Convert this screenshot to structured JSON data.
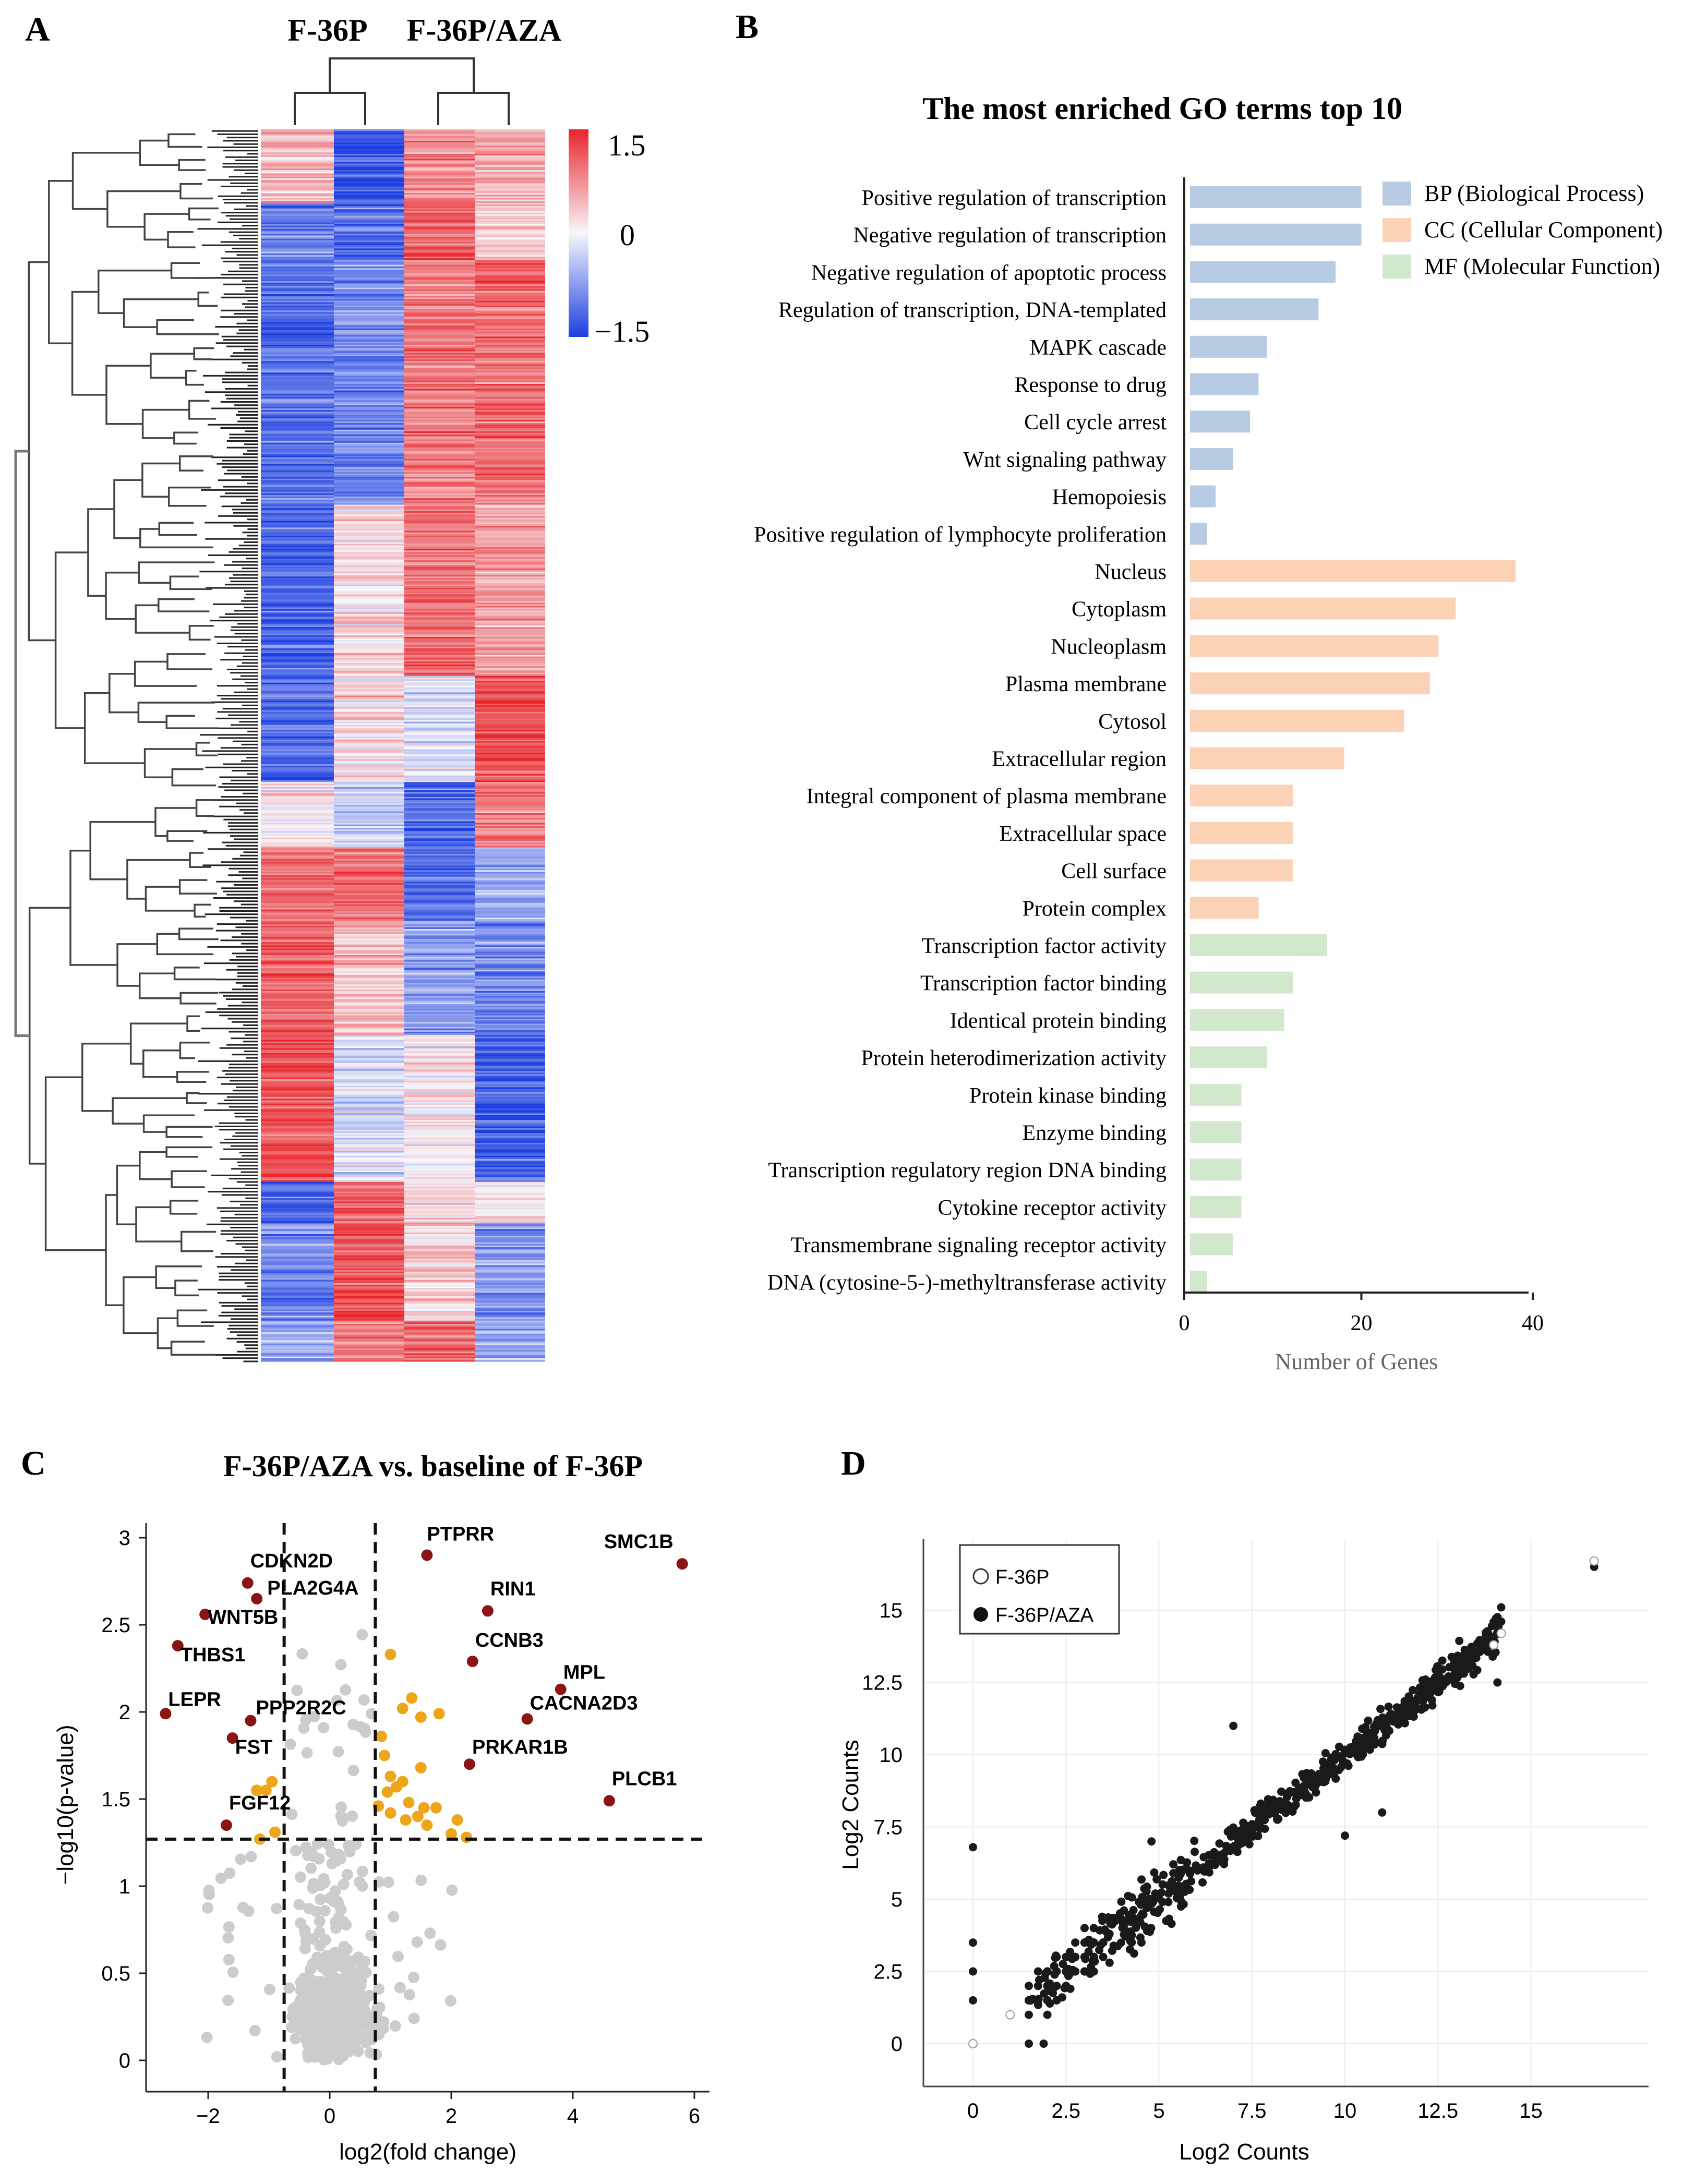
{
  "panels": {
    "A": {
      "label": "A",
      "samples": [
        "F-36P",
        "F-36P/AZA"
      ],
      "legend": {
        "max_label": "1.5",
        "mid_label": "0",
        "min_label": "−1.5",
        "max": 1.5,
        "min": -1.5
      },
      "colors": {
        "high": "#e8262b",
        "mid": "#f7f7fb",
        "low": "#1d3fe0"
      },
      "clusters": [
        {
          "rows": 45,
          "cols": [
            0.4,
            -1.3,
            0.8,
            0.6
          ]
        },
        {
          "rows": 35,
          "cols": [
            -1.0,
            -1.1,
            1.1,
            0.3
          ]
        },
        {
          "rows": 150,
          "cols": [
            -1.1,
            -0.9,
            0.9,
            1.0
          ]
        },
        {
          "rows": 105,
          "cols": [
            -1.2,
            0.2,
            1.0,
            0.6
          ]
        },
        {
          "rows": 65,
          "cols": [
            -1.1,
            0.2,
            -0.2,
            1.2
          ]
        },
        {
          "rows": 40,
          "cols": [
            0.1,
            -0.4,
            -1.1,
            0.9
          ]
        },
        {
          "rows": 45,
          "cols": [
            1.0,
            1.0,
            -1.1,
            -0.6
          ]
        },
        {
          "rows": 70,
          "cols": [
            1.1,
            0.4,
            -0.7,
            -0.9
          ]
        },
        {
          "rows": 90,
          "cols": [
            1.2,
            -0.2,
            0.1,
            -1.2
          ]
        },
        {
          "rows": 25,
          "cols": [
            -1.3,
            1.0,
            0.2,
            0.1
          ]
        },
        {
          "rows": 60,
          "cols": [
            -0.9,
            1.2,
            0.3,
            -0.8
          ]
        },
        {
          "rows": 25,
          "cols": [
            -0.6,
            0.8,
            1.0,
            -0.6
          ]
        }
      ]
    },
    "B": {
      "label": "B",
      "title": "The most enriched GO terms top 10",
      "xlabel": "Number of Genes",
      "legend": [
        {
          "key": "BP",
          "label": "BP (Biological Process)",
          "color": "#b7cbe3"
        },
        {
          "key": "CC",
          "label": "CC (Cellular Component)",
          "color": "#fbd2b5"
        },
        {
          "key": "MF",
          "label": "MF (Molecular Function)",
          "color": "#d2e8cd"
        }
      ]
    },
    "C": {
      "label": "C",
      "title": "F-36P/AZA vs. baseline of F-36P",
      "colors": {
        "grey": "#cccccc",
        "orange": "#eda51a",
        "red": "#8b1515"
      }
    },
    "D": {
      "label": "D",
      "legend": [
        {
          "label": "F-36P",
          "style": "open"
        },
        {
          "label": "F-36P/AZA",
          "style": "filled"
        }
      ]
    }
  },
  "chart_data": [
    {
      "panel": "B",
      "type": "bar",
      "orientation": "horizontal",
      "title": "The most enriched GO terms top 10",
      "xlabel": "Number of Genes",
      "xlim": [
        0,
        40
      ],
      "xticks": [
        0,
        20,
        40
      ],
      "categories": [
        "Positive regulation of transcription",
        "Negative regulation of transcription",
        "Negative regulation of apoptotic process",
        "Regulation of transcription, DNA-templated",
        "MAPK cascade",
        "Response to drug",
        "Cell cycle arrest",
        "Wnt signaling pathway",
        "Hemopoiesis",
        "Positive regulation of lymphocyte proliferation",
        "Nucleus",
        "Cytoplasm",
        "Nucleoplasm",
        "Plasma membrane",
        "Cytosol",
        "Extracellular region",
        "Integral component of plasma membrane",
        "Extracellular space",
        "Cell surface",
        "Protein complex",
        "Transcription factor activity",
        "Transcription factor binding",
        "Identical protein binding",
        "Protein heterodimerization activity",
        "Protein kinase binding",
        "Enzyme binding",
        "Transcription regulatory region DNA binding",
        "Cytokine receptor activity",
        "Transmembrane signaling receptor activity",
        "DNA (cytosine-5-)-methyltransferase activity"
      ],
      "values": [
        20,
        20,
        17,
        15,
        9,
        8,
        7,
        5,
        3,
        2,
        38,
        31,
        29,
        28,
        25,
        18,
        12,
        12,
        12,
        8,
        16,
        12,
        11,
        9,
        6,
        6,
        6,
        6,
        5,
        2
      ],
      "groups": [
        "BP",
        "BP",
        "BP",
        "BP",
        "BP",
        "BP",
        "BP",
        "BP",
        "BP",
        "BP",
        "CC",
        "CC",
        "CC",
        "CC",
        "CC",
        "CC",
        "CC",
        "CC",
        "CC",
        "CC",
        "MF",
        "MF",
        "MF",
        "MF",
        "MF",
        "MF",
        "MF",
        "MF",
        "MF",
        "MF"
      ]
    },
    {
      "panel": "C",
      "type": "scatter",
      "title": "F-36P/AZA vs. baseline of F-36P",
      "xlabel": "log2(fold change)",
      "ylabel": "−log10(p-value)",
      "xlim": [
        -3.2,
        6.3
      ],
      "ylim": [
        -0.1,
        3.1
      ],
      "xticks": [
        -2,
        0,
        2,
        4,
        6
      ],
      "xtick_labels": [
        "−2",
        "0",
        "2",
        "4",
        "6"
      ],
      "yticks": [
        0,
        0.5,
        1,
        1.5,
        2,
        2.5,
        3
      ],
      "ytick_labels": [
        "0",
        "0.5",
        "1",
        "1.5",
        "2",
        "2.5",
        "3"
      ],
      "thresholds": {
        "x": [
          -0.75,
          0.75
        ],
        "y": 1.27
      },
      "labeled_points": [
        {
          "label": "PTPRR",
          "x": 1.6,
          "y": 2.9
        },
        {
          "label": "SMC1B",
          "x": 5.8,
          "y": 2.85
        },
        {
          "label": "CDKN2D",
          "x": -1.35,
          "y": 2.74
        },
        {
          "label": "PLA2G4A",
          "x": -1.2,
          "y": 2.65
        },
        {
          "label": "RIN1",
          "x": 2.6,
          "y": 2.58
        },
        {
          "label": "WNT5B",
          "x": -2.05,
          "y": 2.56
        },
        {
          "label": "THBS1",
          "x": -2.5,
          "y": 2.38
        },
        {
          "label": "CCNB3",
          "x": 2.35,
          "y": 2.29
        },
        {
          "label": "MPL",
          "x": 3.8,
          "y": 2.13
        },
        {
          "label": "LEPR",
          "x": -2.7,
          "y": 1.99
        },
        {
          "label": "PPP2R2C",
          "x": -1.3,
          "y": 1.95
        },
        {
          "label": "CACNA2D3",
          "x": 3.25,
          "y": 1.96
        },
        {
          "label": "FST",
          "x": -1.6,
          "y": 1.85
        },
        {
          "label": "PRKAR1B",
          "x": 2.3,
          "y": 1.7
        },
        {
          "label": "PLCB1",
          "x": 4.6,
          "y": 1.49
        },
        {
          "label": "FGF12",
          "x": -1.7,
          "y": 1.35
        }
      ],
      "significant_points": [
        {
          "x": 1.0,
          "y": 2.33
        },
        {
          "x": 1.2,
          "y": 2.02
        },
        {
          "x": 1.35,
          "y": 2.08
        },
        {
          "x": 1.5,
          "y": 1.97
        },
        {
          "x": 1.8,
          "y": 1.99
        },
        {
          "x": 0.85,
          "y": 1.86
        },
        {
          "x": 0.9,
          "y": 1.75
        },
        {
          "x": 1.0,
          "y": 1.63
        },
        {
          "x": 1.2,
          "y": 1.6
        },
        {
          "x": 1.5,
          "y": 1.68
        },
        {
          "x": 1.1,
          "y": 1.57
        },
        {
          "x": 1.3,
          "y": 1.48
        },
        {
          "x": 1.55,
          "y": 1.45
        },
        {
          "x": 0.8,
          "y": 1.46
        },
        {
          "x": 1.0,
          "y": 1.42
        },
        {
          "x": 1.25,
          "y": 1.38
        },
        {
          "x": 1.45,
          "y": 1.4
        },
        {
          "x": 1.75,
          "y": 1.45
        },
        {
          "x": 2.1,
          "y": 1.38
        },
        {
          "x": 1.6,
          "y": 1.35
        },
        {
          "x": 0.95,
          "y": 1.54
        },
        {
          "x": 2.0,
          "y": 1.3
        },
        {
          "x": 2.25,
          "y": 1.28
        },
        {
          "x": -1.2,
          "y": 1.55
        },
        {
          "x": -1.05,
          "y": 1.55
        },
        {
          "x": -1.15,
          "y": 1.27
        },
        {
          "x": -0.9,
          "y": 1.31
        },
        {
          "x": -0.95,
          "y": 1.6
        }
      ],
      "background_points": {
        "count": 620,
        "center_x": 0.05,
        "spread_x": 0.55,
        "max_y": 2.5
      }
    },
    {
      "panel": "D",
      "type": "scatter",
      "xlabel": "Log2 Counts",
      "ylabel": "Log2 Counts",
      "xlim": [
        -0.8,
        18.2
      ],
      "ylim": [
        -1.0,
        17.5
      ],
      "xticks": [
        0,
        2.5,
        5,
        7.5,
        10,
        12.5,
        15
      ],
      "xtick_labels": [
        "0",
        "2.5",
        "5",
        "7.5",
        "10",
        "12.5",
        "15"
      ],
      "yticks": [
        0,
        2.5,
        5,
        7.5,
        10,
        12.5,
        15
      ],
      "ytick_labels": [
        "0",
        "2.5",
        "5",
        "7.5",
        "10",
        "12.5",
        "15"
      ],
      "series": [
        {
          "name": "F-36P",
          "style": "open",
          "points": [
            [
              0,
              0
            ],
            [
              1,
              1
            ],
            [
              14.2,
              14.2
            ],
            [
              16.7,
              16.7
            ],
            [
              14,
              13.8
            ]
          ]
        },
        {
          "name": "F-36P/AZA",
          "style": "filled",
          "trend": "y = x",
          "count": 700,
          "range": [
            0,
            14.2
          ],
          "extra_points": [
            [
              16.7,
              16.5
            ],
            [
              0,
              6.8
            ],
            [
              0,
              3.5
            ],
            [
              0,
              2.5
            ],
            [
              0,
              1.5
            ],
            [
              1.5,
              0
            ],
            [
              1.9,
              0
            ],
            [
              14.2,
              15.1
            ],
            [
              14,
              14.6
            ],
            [
              13.8,
              14.2
            ],
            [
              7,
              11
            ],
            [
              11,
              8
            ],
            [
              4.8,
              7
            ],
            [
              14.1,
              12.5
            ],
            [
              10,
              7.2
            ]
          ]
        }
      ]
    }
  ]
}
